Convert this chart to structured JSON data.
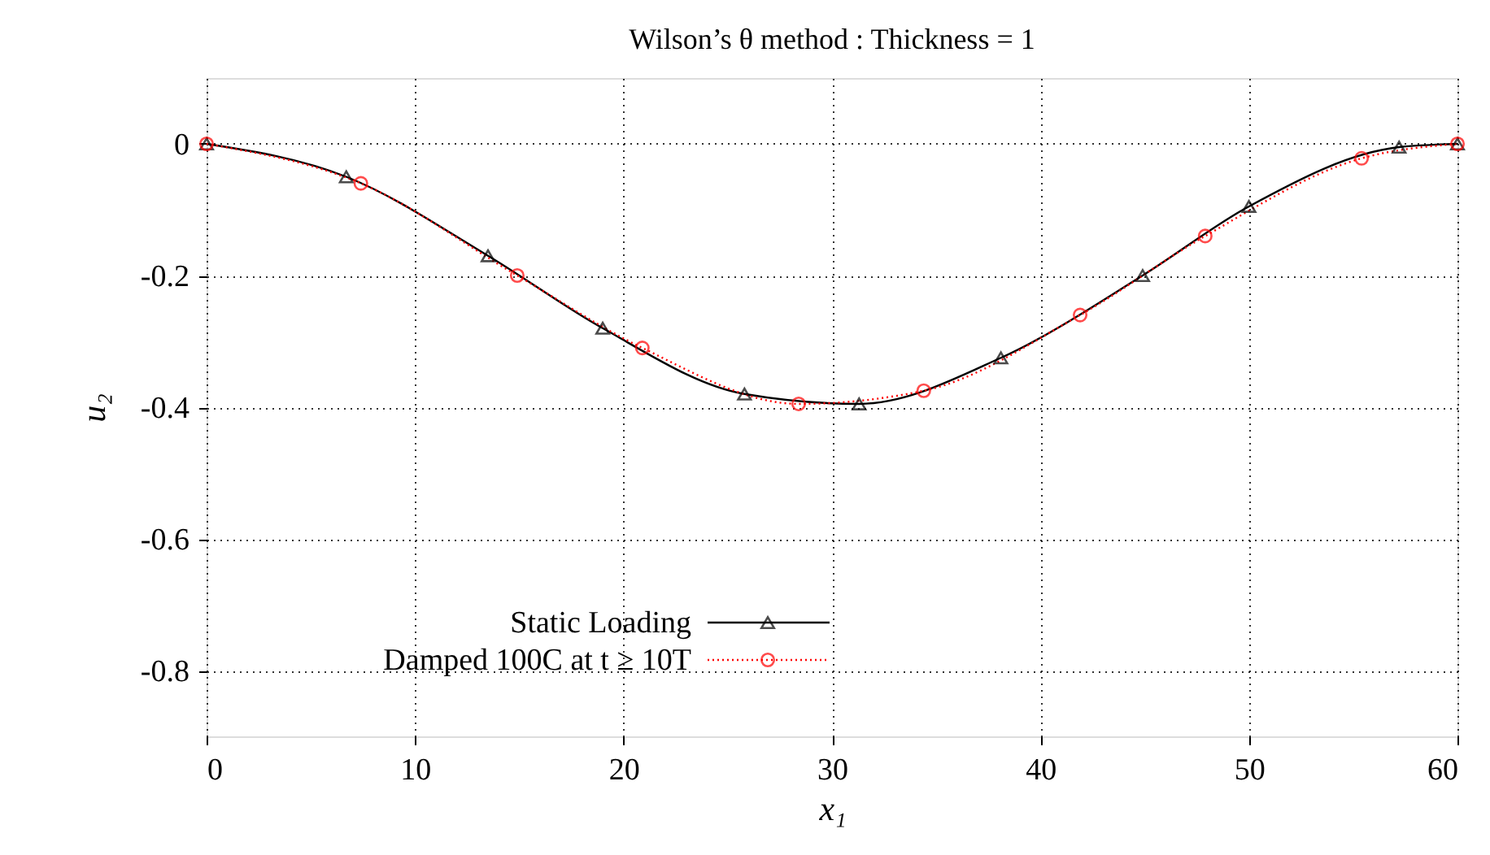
{
  "chart_data": {
    "type": "line",
    "title": "Wilson’s  θ method  :  Thickness = 1",
    "xlabel": "x₁",
    "ylabel": "u₂",
    "xlim": [
      0,
      60
    ],
    "ylim": [
      -0.9,
      0.1
    ],
    "xticks": [
      0,
      10,
      20,
      30,
      40,
      50,
      60
    ],
    "yticks": [
      -0.8,
      -0.6,
      -0.4,
      -0.2,
      0
    ],
    "grid": true,
    "legend": "bottom left",
    "series": [
      {
        "name": "Static Loading",
        "color": "#000000",
        "marker": "triangle",
        "line_style": "solid",
        "x": [
          0,
          6.7,
          13.5,
          19.0,
          25.8,
          31.3,
          38.1,
          44.9,
          50.0,
          57.2,
          60
        ],
        "values": [
          0,
          -0.05,
          -0.17,
          -0.28,
          -0.38,
          -0.395,
          -0.325,
          -0.2,
          -0.095,
          -0.005,
          0
        ]
      },
      {
        "name": "Damped 100C at t ≥ 10T",
        "color": "#ff0000",
        "marker": "circle",
        "line_style": "dotted",
        "x": [
          0,
          7.4,
          14.9,
          20.9,
          28.4,
          34.4,
          41.9,
          47.9,
          55.4,
          60
        ],
        "values": [
          0,
          -0.06,
          -0.2,
          -0.31,
          -0.395,
          -0.375,
          -0.26,
          -0.14,
          -0.022,
          0
        ]
      }
    ]
  }
}
